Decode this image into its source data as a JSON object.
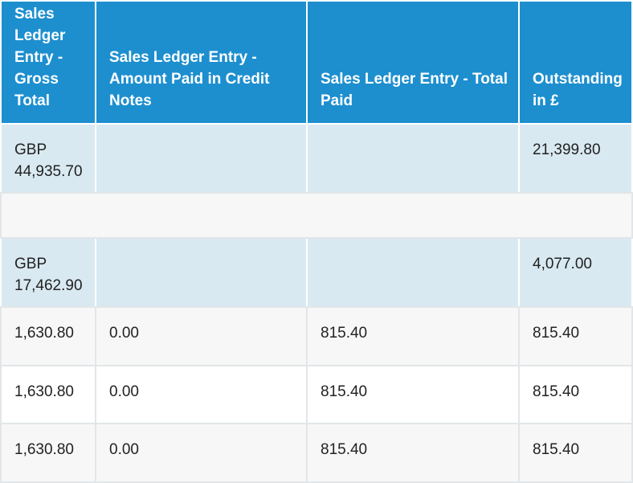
{
  "table": {
    "headers": [
      "Sales Ledger Entry - Gross Total",
      "Sales Ledger Entry - Amount Paid in Credit Notes",
      "Sales Ledger Entry - Total Paid",
      "Outstanding in £"
    ],
    "rows": [
      [
        "GBP 44,935.70",
        "",
        "",
        "21,399.80"
      ],
      [
        "",
        "",
        "",
        ""
      ],
      [
        "GBP 17,462.90",
        "",
        "",
        "4,077.00"
      ],
      [
        "1,630.80",
        "0.00",
        "815.40",
        "815.40"
      ],
      [
        "1,630.80",
        "0.00",
        "815.40",
        "815.40"
      ],
      [
        "1,630.80",
        "0.00",
        "815.40",
        "815.40"
      ]
    ]
  },
  "colors": {
    "header_bg": "#1d8fcf",
    "header_text": "#ffffff",
    "row_highlight": "#d9e9f1",
    "row_alt": "#f7f7f7",
    "grid": "#e2e6e8"
  }
}
